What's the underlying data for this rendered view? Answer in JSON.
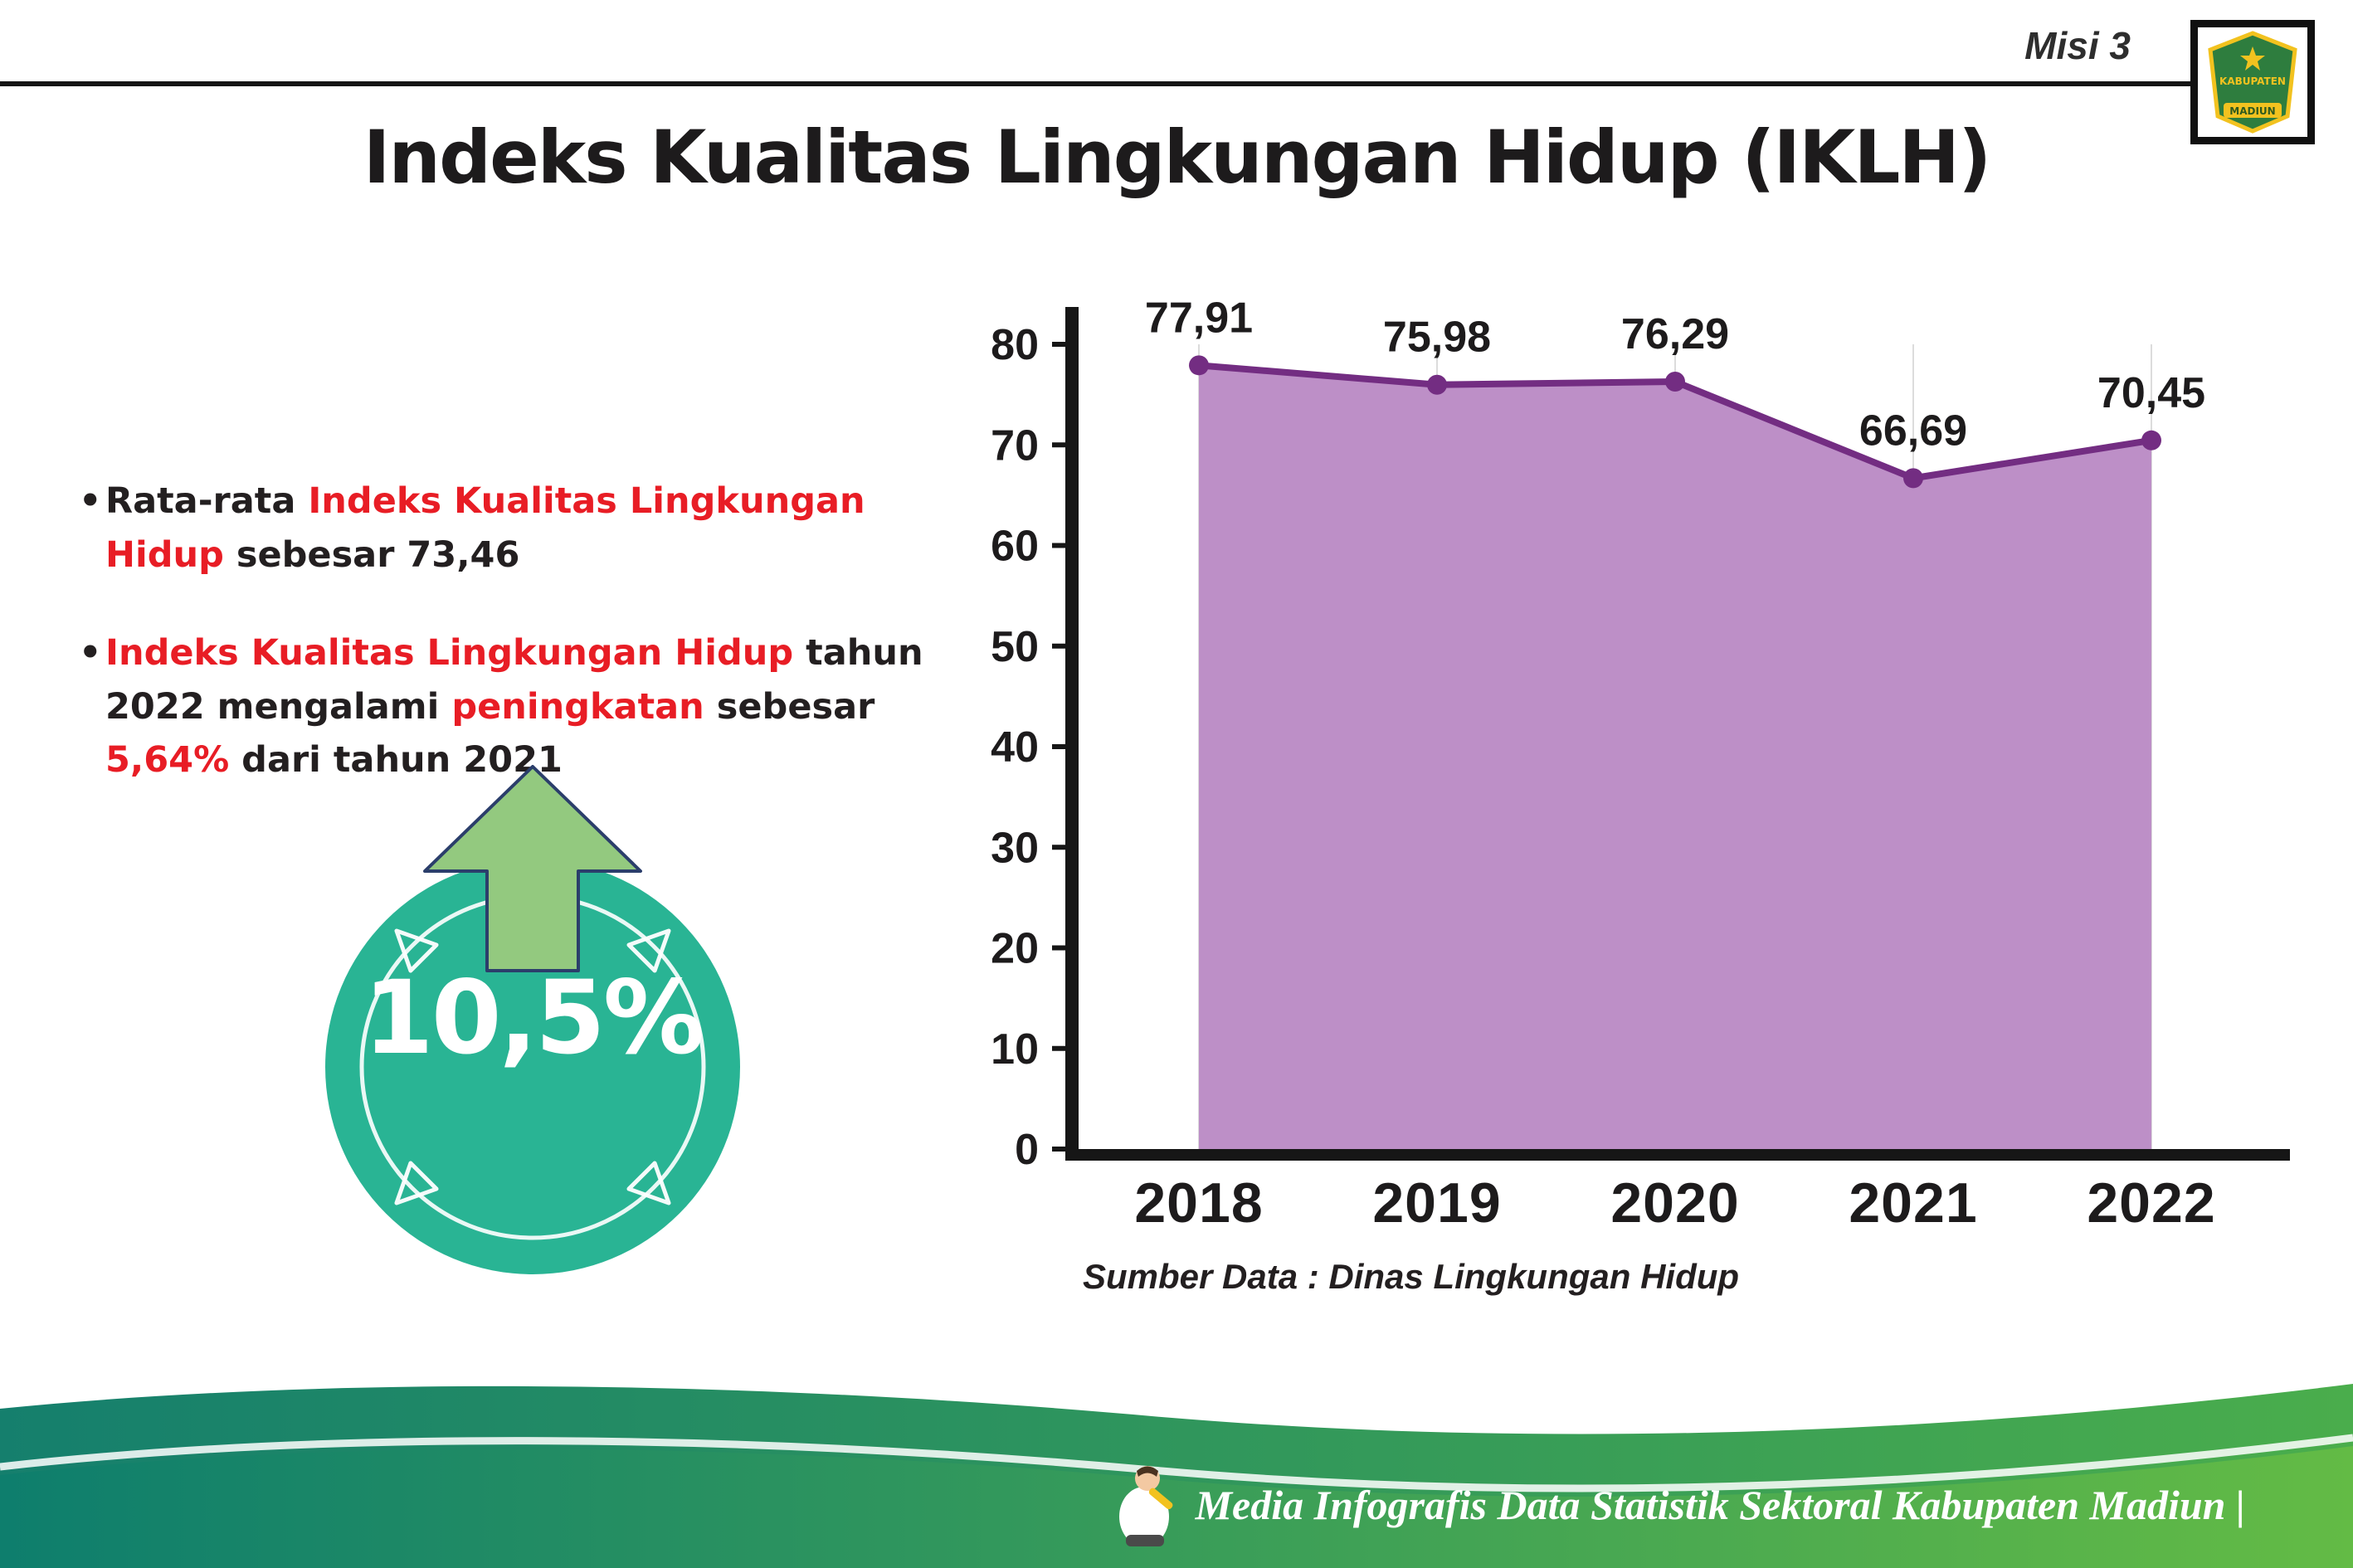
{
  "header": {
    "misi_label": "Misi 3",
    "title": "Indeks Kualitas Lingkungan Hidup (IKLH)",
    "logo": {
      "name": "kabupaten-madiun-crest",
      "top_text": "KABUPATEN",
      "bottom_text": "MADIUN"
    }
  },
  "bullets": {
    "glyph": "•",
    "item1": {
      "segments": [
        {
          "text": "Rata-rata ",
          "color": "black"
        },
        {
          "text": "Indeks Kualitas Lingkungan Hidup",
          "color": "red"
        },
        {
          "text": " sebesar 73,46",
          "color": "black"
        }
      ]
    },
    "item2": {
      "segments": [
        {
          "text": "Indeks Kualitas Lingkungan Hidup",
          "color": "red"
        },
        {
          "text": " tahun 2022 mengalami ",
          "color": "black"
        },
        {
          "text": "peningkatan",
          "color": "red"
        },
        {
          "text": " sebesar ",
          "color": "black"
        },
        {
          "text": "5,64%",
          "color": "red"
        },
        {
          "text": " dari tahun 2021",
          "color": "black"
        }
      ]
    }
  },
  "badge": {
    "value": "10,5%",
    "circle_color": "#29b494",
    "arrow_color": "#93c97f"
  },
  "chart_data": {
    "type": "area",
    "title": "Indeks Kualitas Lingkungan Hidup (IKLH)",
    "categories": [
      "2018",
      "2019",
      "2020",
      "2021",
      "2022"
    ],
    "values": [
      77.91,
      75.98,
      76.29,
      66.69,
      70.45
    ],
    "value_labels": [
      "77,91",
      "75,98",
      "76,29",
      "66,69",
      "70,45"
    ],
    "ylim": [
      0,
      80
    ],
    "ytick_step": 10,
    "grid": "vertical-light",
    "legend": "none",
    "colors": {
      "area": "#bd8fc7",
      "line": "#732d82",
      "axis": "#161616",
      "grid": "#dcdcdc"
    },
    "source_note": "Sumber Data : Dinas Lingkungan Hidup"
  },
  "icons": {
    "crest": "kabupaten-madiun-crest-icon",
    "mascot": "writing-person-mascot-icon",
    "arrow": "increase-arrow-icon"
  },
  "footer": {
    "text": "Media Infografis Data Statistik Sektoral Kabupaten Madiun |"
  }
}
